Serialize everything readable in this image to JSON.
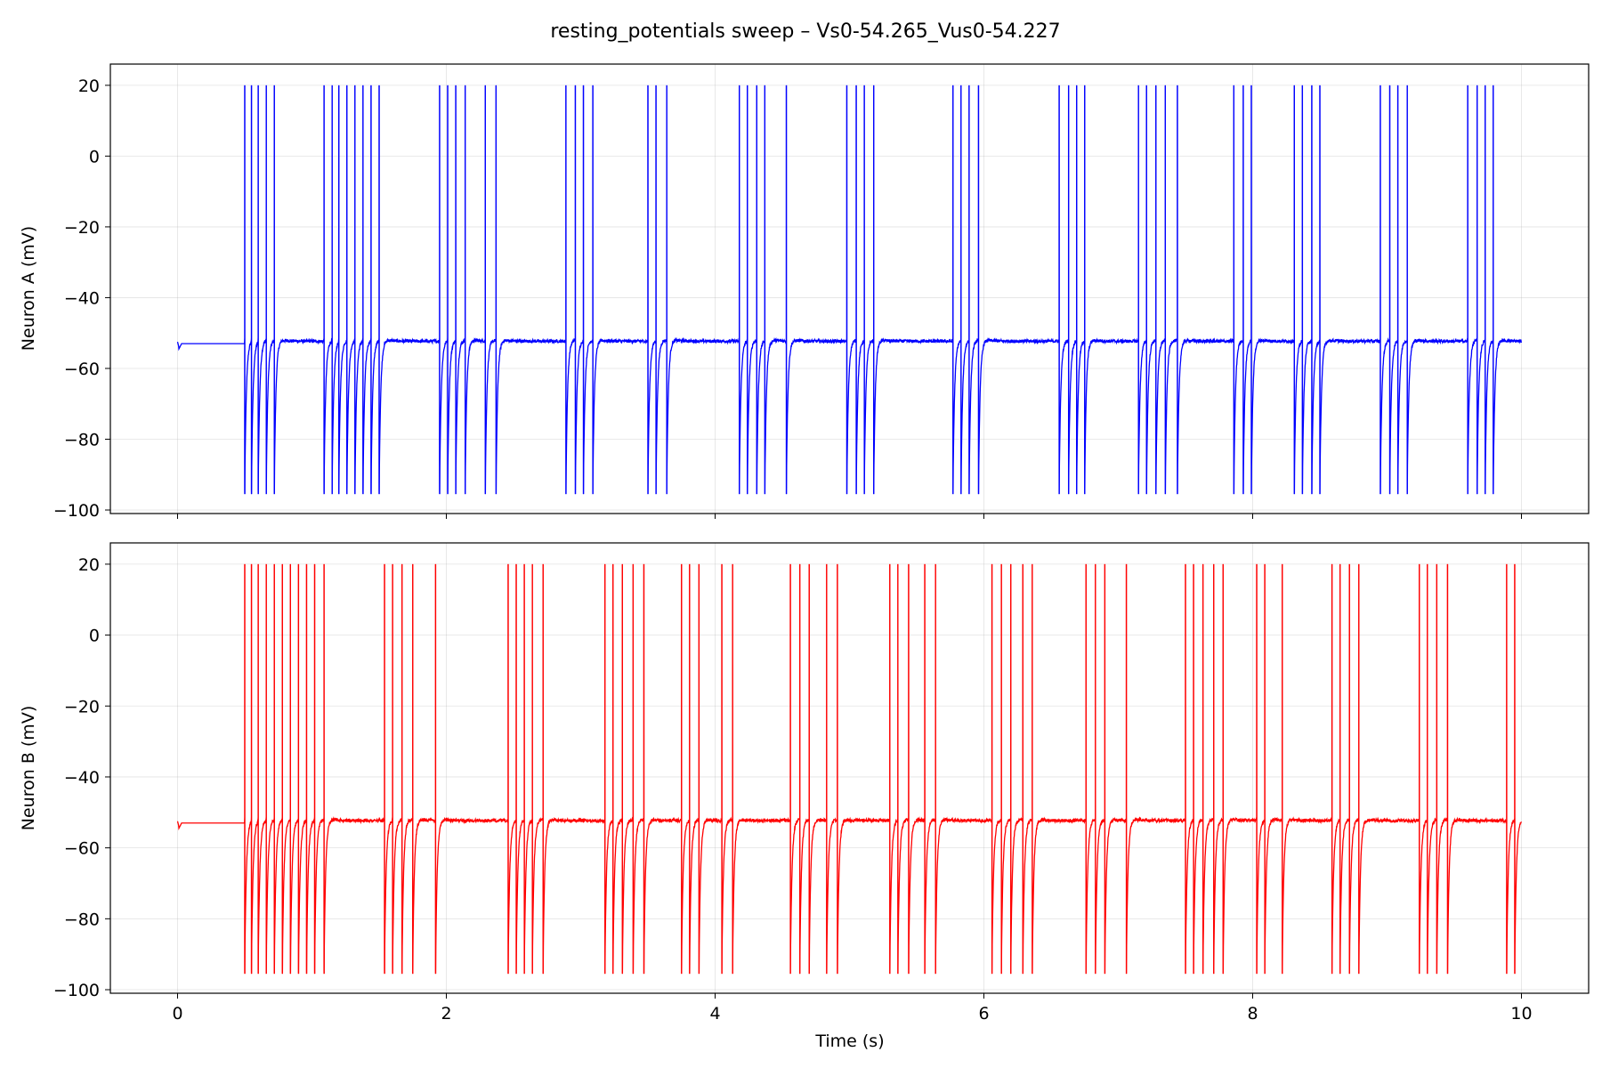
{
  "figure": {
    "title": "resting_potentials sweep – Vs0-54.265_Vus0-54.227"
  },
  "chart_data": [
    {
      "type": "line",
      "panel": "top",
      "series": [
        {
          "name": "Neuron A",
          "color": "#0000ff",
          "rest_mv": -52.3,
          "initial_rest_mv": -53.0,
          "spike_peak_mv": 20,
          "spike_trough_mv": -95.5,
          "spike_times_s": [
            0.5,
            0.55,
            0.6,
            0.66,
            0.72,
            1.09,
            1.15,
            1.2,
            1.26,
            1.32,
            1.38,
            1.44,
            1.5,
            1.95,
            2.01,
            2.07,
            2.14,
            2.29,
            2.37,
            2.89,
            2.96,
            3.02,
            3.09,
            3.5,
            3.56,
            3.64,
            4.18,
            4.24,
            4.31,
            4.37,
            4.53,
            4.98,
            5.05,
            5.11,
            5.18,
            5.77,
            5.83,
            5.89,
            5.96,
            6.56,
            6.63,
            6.69,
            6.75,
            7.15,
            7.21,
            7.28,
            7.35,
            7.44,
            7.86,
            7.93,
            7.99,
            8.31,
            8.37,
            8.44,
            8.5,
            8.95,
            9.02,
            9.08,
            9.15,
            9.6,
            9.67,
            9.73,
            9.79
          ]
        }
      ],
      "xlim": [
        -0.5,
        10.5
      ],
      "ylim": [
        -101,
        26
      ],
      "yticks": [
        20,
        0,
        -20,
        -40,
        -60,
        -80,
        -100
      ],
      "xticks": [
        0,
        2,
        4,
        6,
        8,
        10
      ],
      "xticklabels_visible": false,
      "ylabel": "Neuron A (mV)",
      "xlabel": "",
      "grid": true
    },
    {
      "type": "line",
      "panel": "bottom",
      "series": [
        {
          "name": "Neuron B",
          "color": "#ff0000",
          "rest_mv": -52.3,
          "initial_rest_mv": -53.0,
          "spike_peak_mv": 20,
          "spike_trough_mv": -95.5,
          "spike_times_s": [
            0.5,
            0.55,
            0.6,
            0.66,
            0.72,
            0.78,
            0.84,
            0.9,
            0.96,
            1.02,
            1.09,
            1.54,
            1.6,
            1.67,
            1.75,
            1.92,
            2.46,
            2.52,
            2.58,
            2.64,
            2.72,
            3.18,
            3.24,
            3.31,
            3.39,
            3.47,
            3.75,
            3.81,
            3.88,
            4.05,
            4.13,
            4.56,
            4.63,
            4.7,
            4.83,
            4.91,
            5.3,
            5.36,
            5.44,
            5.56,
            5.64,
            6.06,
            6.13,
            6.2,
            6.29,
            6.36,
            6.76,
            6.83,
            6.9,
            7.06,
            7.5,
            7.56,
            7.63,
            7.71,
            7.78,
            8.03,
            8.09,
            8.22,
            8.59,
            8.65,
            8.72,
            8.79,
            9.24,
            9.3,
            9.37,
            9.45,
            9.89,
            9.95
          ]
        }
      ],
      "xlim": [
        -0.5,
        10.5
      ],
      "ylim": [
        -101,
        26
      ],
      "yticks": [
        20,
        0,
        -20,
        -40,
        -60,
        -80,
        -100
      ],
      "xticks": [
        0,
        2,
        4,
        6,
        8,
        10
      ],
      "xticklabels": [
        "0",
        "2",
        "4",
        "6",
        "8",
        "10"
      ],
      "ylabel": "Neuron B (mV)",
      "xlabel": "Time (s)",
      "grid": true
    }
  ]
}
